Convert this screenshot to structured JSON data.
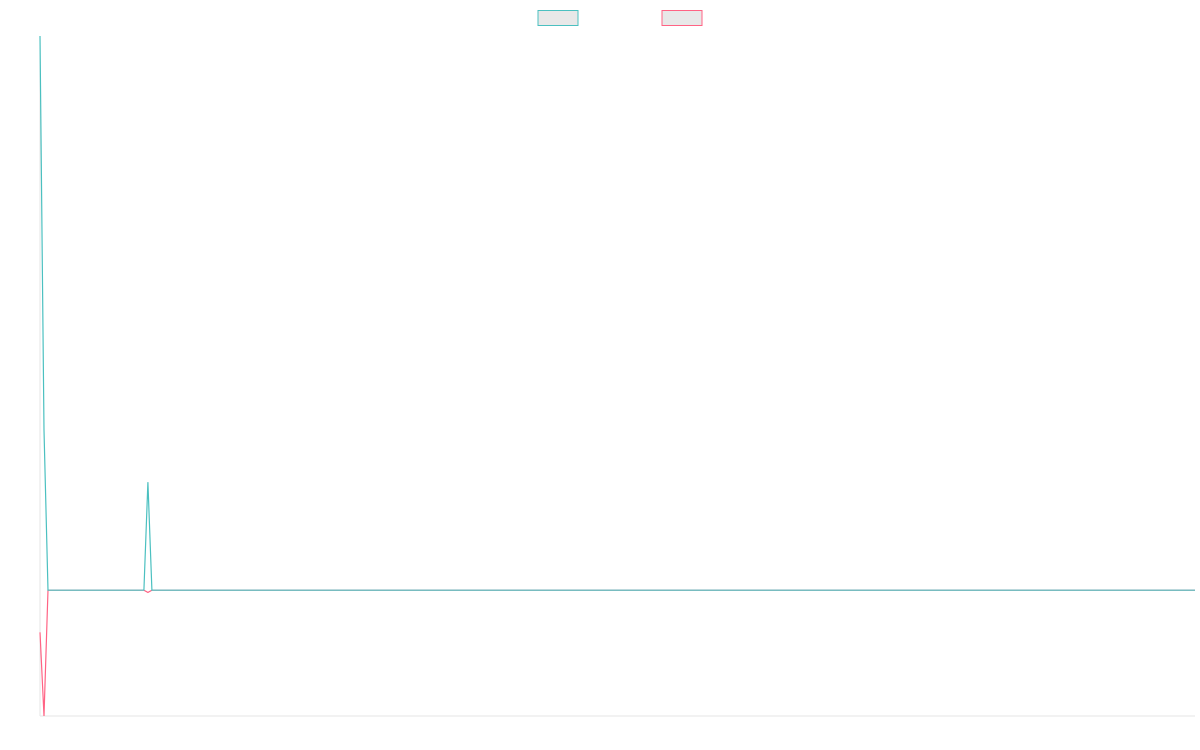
{
  "chart_data": {
    "type": "line",
    "x": [
      0,
      1,
      2,
      26,
      27,
      28,
      289
    ],
    "xlim": [
      0,
      289
    ],
    "ylim": [
      -22.7,
      100
    ],
    "series": [
      {
        "color": "#4bc0c0",
        "values": [
          100,
          28.9,
          0,
          0,
          19.5,
          0,
          0
        ]
      },
      {
        "color": "#ff6384",
        "values": [
          -7.6,
          -22.7,
          0,
          0,
          -0.4,
          0,
          0
        ]
      }
    ],
    "legend": "top"
  }
}
